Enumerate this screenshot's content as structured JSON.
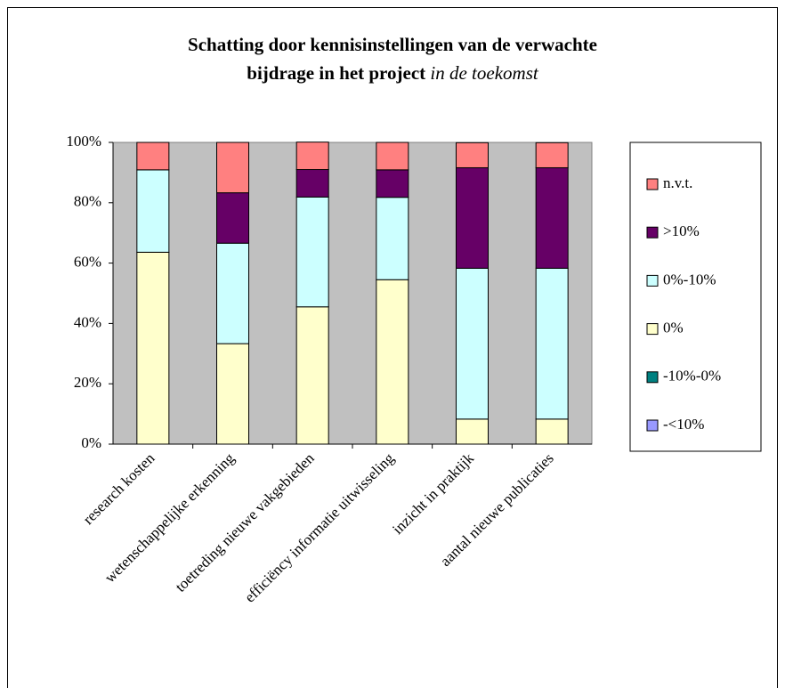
{
  "chart_data": {
    "type": "stacked_bar",
    "title": [
      "Schatting door kennisinstellingen van de verwachte",
      "bijdrage in het project",
      "in de toekomst"
    ],
    "categories": [
      "research kosten",
      "wetenschappelijke erkenning",
      "toetreding nieuwe vakgebieden",
      "efficiëncy informatie uitwisseling",
      "inzicht in praktijk",
      "aantal nieuwe publicaties"
    ],
    "series": [
      {
        "name": "-<10%",
        "color": "#9999ff",
        "values": [
          0,
          0,
          0,
          0,
          0,
          0
        ]
      },
      {
        "name": "-10%-0%",
        "color": "#008080",
        "values": [
          0,
          0,
          0,
          0,
          0,
          0
        ]
      },
      {
        "name": "0%",
        "color": "#ffffcc",
        "values": [
          63.6,
          33.3,
          45.5,
          54.5,
          8.3,
          8.3
        ]
      },
      {
        "name": "0%-10%",
        "color": "#ccffff",
        "values": [
          27.3,
          33.3,
          36.4,
          27.3,
          50,
          50
        ]
      },
      {
        "name": ">10%",
        "color": "#660066",
        "values": [
          0,
          16.7,
          9.1,
          9.1,
          33.3,
          33.3
        ]
      },
      {
        "name": "n.v.t.",
        "color": "#ff8080",
        "values": [
          9.1,
          16.7,
          9.1,
          9.1,
          8.3,
          8.3
        ]
      }
    ],
    "ylim": [
      0,
      100
    ],
    "yticks": [
      {
        "value": 0,
        "label": "0%"
      },
      {
        "value": 20,
        "label": "20%"
      },
      {
        "value": 40,
        "label": "40%"
      },
      {
        "value": 60,
        "label": "60%"
      },
      {
        "value": 80,
        "label": "80%"
      },
      {
        "value": 100,
        "label": "100%"
      }
    ],
    "grid": false,
    "legend": "right"
  }
}
